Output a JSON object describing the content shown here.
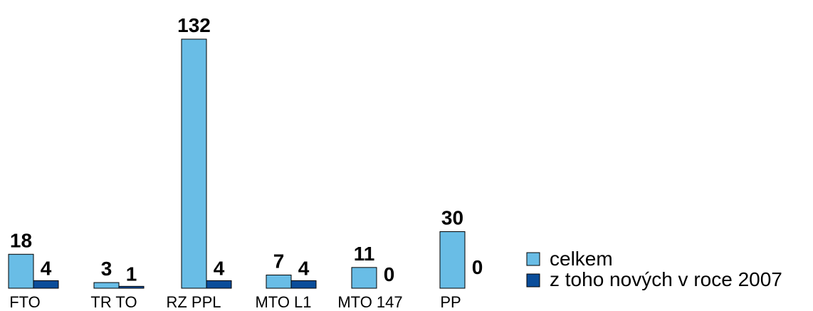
{
  "chart_data": {
    "type": "bar",
    "categories": [
      "FTO",
      "TR TO",
      "RZ  PPL",
      "MTO  L1",
      "MTO  147",
      "PP"
    ],
    "series": [
      {
        "name": "celkem",
        "values": [
          18,
          3,
          132,
          7,
          11,
          30
        ],
        "color": "#69bde6"
      },
      {
        "name": "z toho nových v roce 2007",
        "values": [
          4,
          1,
          4,
          4,
          0,
          0
        ],
        "color": "#0a4d9a"
      }
    ],
    "title": "",
    "xlabel": "",
    "ylabel": "",
    "ylim": [
      0,
      132
    ],
    "grid": false,
    "legend_position": "right"
  }
}
